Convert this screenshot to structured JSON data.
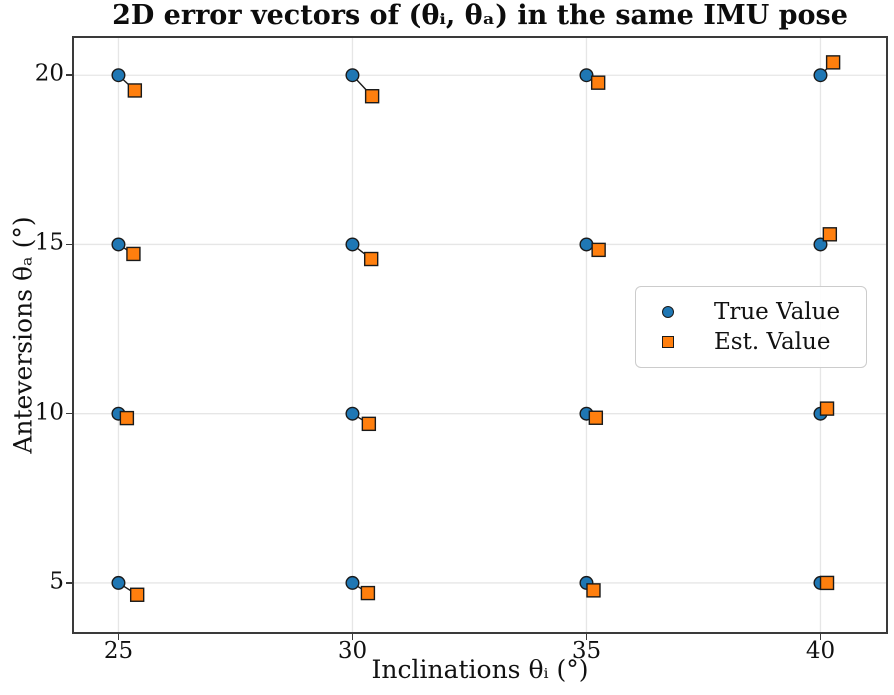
{
  "chart_data": {
    "type": "scatter",
    "title": "2D error vectors of (θᵢ, θₐ) in the same IMU pose",
    "xlabel": "Inclinations θᵢ (°)",
    "ylabel": "Anteversions θₐ (°)",
    "xlim": [
      24.05,
      41.4
    ],
    "ylim": [
      3.55,
      21.1
    ],
    "xticks": [
      25,
      30,
      35,
      40
    ],
    "yticks": [
      5,
      10,
      15,
      20
    ],
    "grid": true,
    "legend": {
      "position": "center-right",
      "entries": [
        {
          "label": "True Value",
          "marker": "circle",
          "color": "#1f77b4"
        },
        {
          "label": "Est. Value",
          "marker": "square",
          "color": "#ff7f0e"
        }
      ]
    },
    "colors": {
      "true_fill": "#1f77b4",
      "est_fill": "#ff7f0e",
      "marker_edge": "#1a1a1a",
      "vector": "#1a1a1a",
      "grid": "#e6e6e6",
      "spine": "#3a3a3a",
      "text": "#111111"
    },
    "pairs": [
      {
        "true": [
          25,
          20
        ],
        "est": [
          25.35,
          19.55
        ]
      },
      {
        "true": [
          30,
          20
        ],
        "est": [
          30.42,
          19.38
        ]
      },
      {
        "true": [
          35,
          20
        ],
        "est": [
          35.25,
          19.78
        ]
      },
      {
        "true": [
          40,
          20
        ],
        "est": [
          40.27,
          20.38
        ]
      },
      {
        "true": [
          25,
          15
        ],
        "est": [
          25.32,
          14.72
        ]
      },
      {
        "true": [
          30,
          15
        ],
        "est": [
          30.4,
          14.57
        ]
      },
      {
        "true": [
          35,
          15
        ],
        "est": [
          35.26,
          14.84
        ]
      },
      {
        "true": [
          40,
          15
        ],
        "est": [
          40.2,
          15.3
        ]
      },
      {
        "true": [
          25,
          10
        ],
        "est": [
          25.18,
          9.87
        ]
      },
      {
        "true": [
          30,
          10
        ],
        "est": [
          30.35,
          9.7
        ]
      },
      {
        "true": [
          35,
          10
        ],
        "est": [
          35.2,
          9.88
        ]
      },
      {
        "true": [
          40,
          10
        ],
        "est": [
          40.14,
          10.15
        ]
      },
      {
        "true": [
          25,
          5
        ],
        "est": [
          25.4,
          4.65
        ]
      },
      {
        "true": [
          30,
          5
        ],
        "est": [
          30.33,
          4.7
        ]
      },
      {
        "true": [
          35,
          5
        ],
        "est": [
          35.15,
          4.78
        ]
      },
      {
        "true": [
          40,
          5
        ],
        "est": [
          40.14,
          5.0
        ]
      }
    ]
  }
}
